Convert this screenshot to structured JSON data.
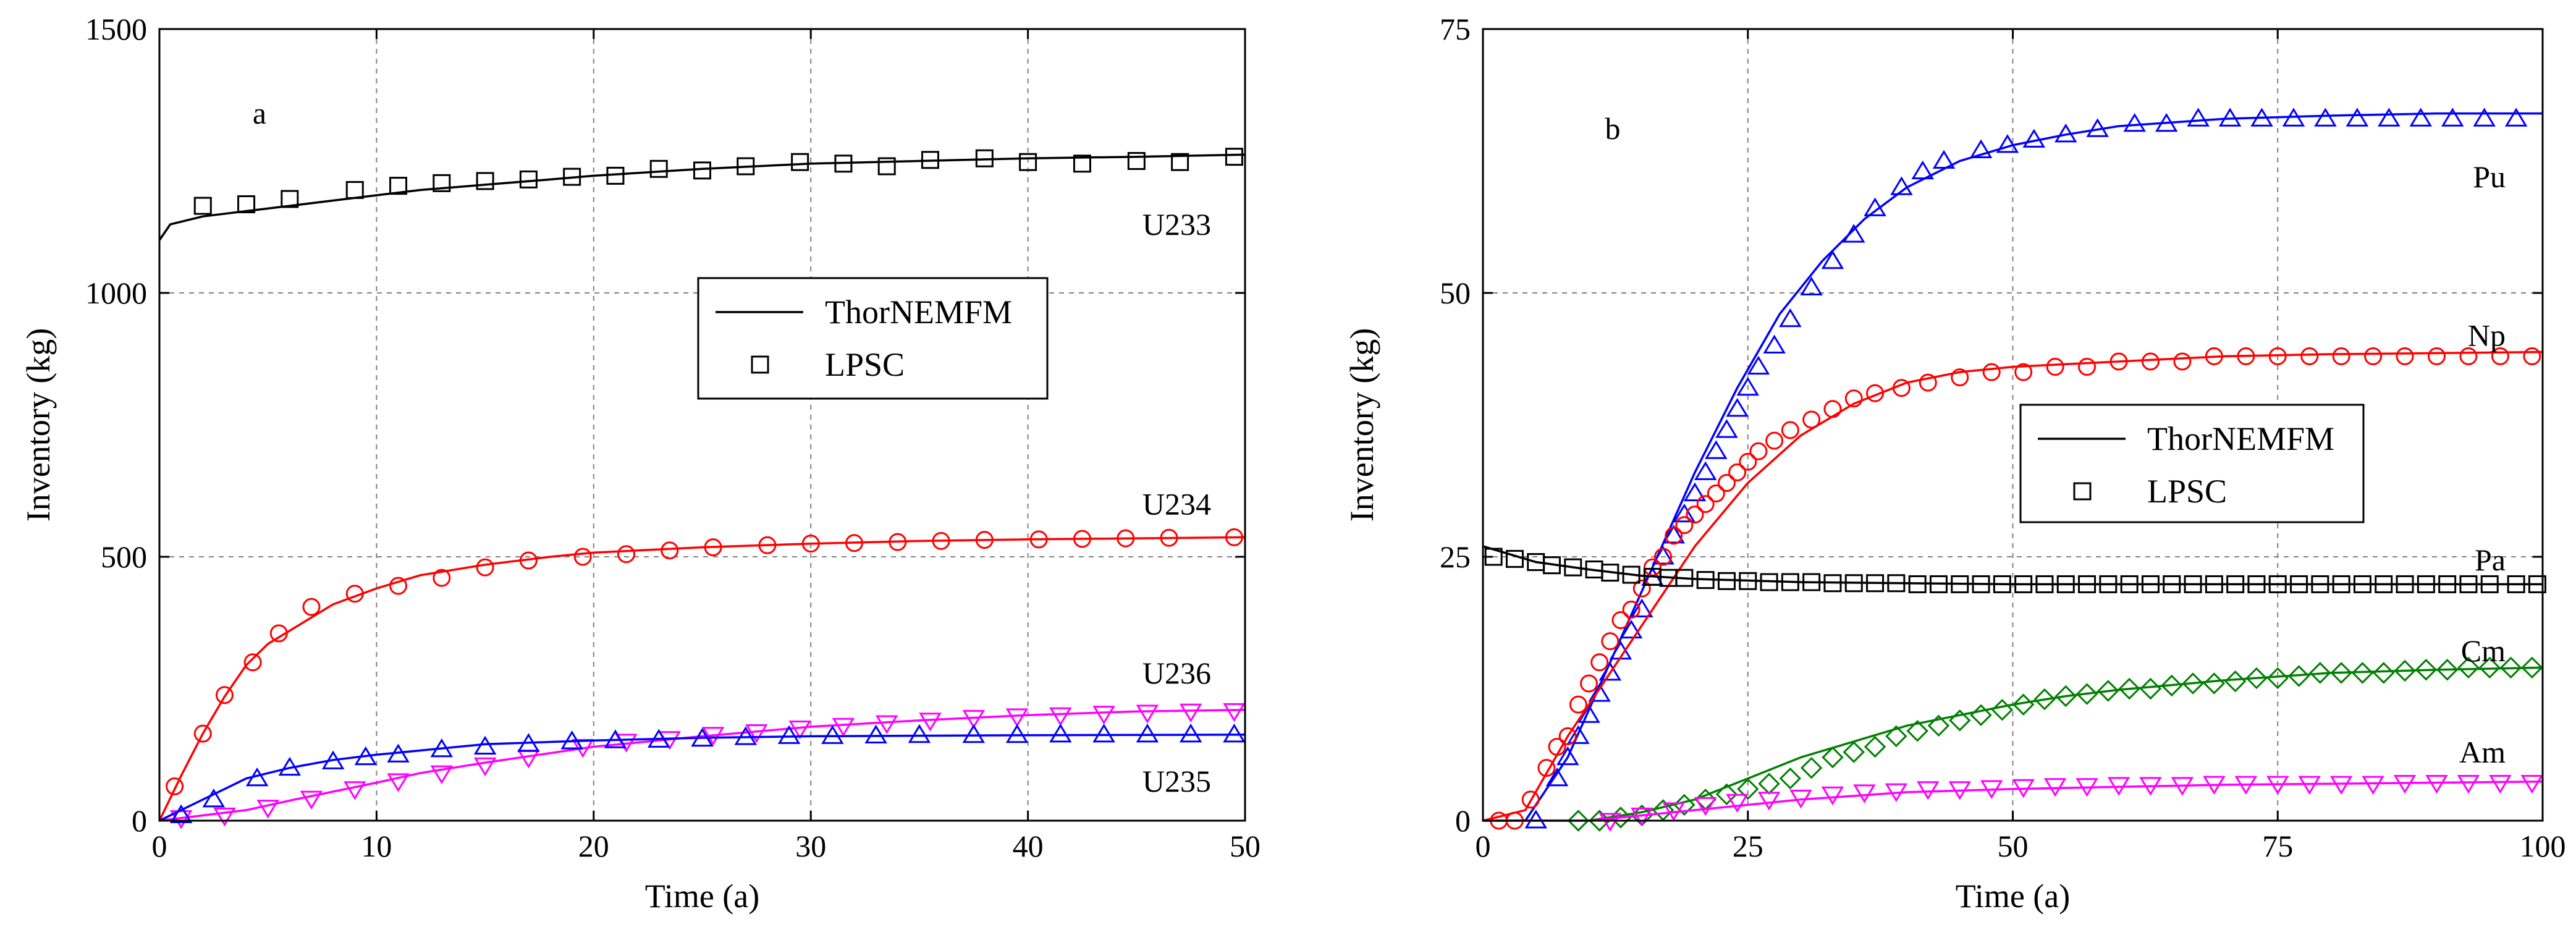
{
  "chart_data": [
    {
      "type": "line",
      "panel_label": "a",
      "xlabel": "Time (a)",
      "ylabel": "Inventory (kg)",
      "xlim": [
        0,
        50
      ],
      "ylim": [
        0,
        1500
      ],
      "xticks": [
        0,
        10,
        20,
        30,
        40,
        50
      ],
      "yticks": [
        0,
        500,
        1000,
        1500
      ],
      "grid": true,
      "legend": {
        "placement": "center-right",
        "entries": [
          {
            "label": "ThorNEMFM",
            "style": "line"
          },
          {
            "label": "LPSC",
            "style": "square-marker"
          }
        ]
      },
      "series": [
        {
          "name": "U233",
          "color": "#000000",
          "marker": "square",
          "x": [
            0,
            0.5,
            2,
            4,
            6,
            8,
            10,
            12,
            15,
            18,
            20,
            25,
            30,
            35,
            40,
            45,
            50
          ],
          "y": [
            1100,
            1130,
            1145,
            1155,
            1165,
            1175,
            1185,
            1195,
            1205,
            1215,
            1222,
            1235,
            1245,
            1250,
            1255,
            1258,
            1262
          ],
          "mx": [
            2,
            4,
            6,
            9,
            11,
            13,
            15,
            17,
            19,
            21,
            23,
            25,
            27,
            29.5,
            31.5,
            33.5,
            35.5,
            38,
            40,
            42.5,
            45,
            47,
            49.5
          ],
          "my": [
            1165,
            1168,
            1178,
            1195,
            1203,
            1208,
            1212,
            1215,
            1220,
            1222,
            1235,
            1232,
            1240,
            1248,
            1245,
            1240,
            1252,
            1255,
            1248,
            1245,
            1250,
            1248,
            1258
          ]
        },
        {
          "name": "U234",
          "color": "#ff0000",
          "marker": "circle",
          "x": [
            0,
            1,
            2,
            3,
            4,
            5,
            6,
            8,
            10,
            12,
            15,
            18,
            20,
            25,
            30,
            35,
            40,
            45,
            50
          ],
          "y": [
            0,
            85,
            165,
            235,
            295,
            335,
            360,
            410,
            440,
            465,
            485,
            500,
            508,
            518,
            525,
            530,
            533,
            535,
            537
          ],
          "mx": [
            0.7,
            2,
            3,
            4.3,
            5.5,
            7,
            9,
            11,
            13,
            15,
            17,
            19.5,
            21.5,
            23.5,
            25.5,
            28,
            30,
            32,
            34,
            36,
            38,
            40.5,
            42.5,
            44.5,
            46.5,
            49.5
          ],
          "my": [
            65,
            165,
            238,
            300,
            355,
            405,
            430,
            445,
            460,
            480,
            493,
            500,
            505,
            512,
            518,
            522,
            525,
            526,
            528,
            530,
            532,
            533,
            534,
            535,
            536,
            537
          ]
        },
        {
          "name": "U236",
          "color": "#ff00ff",
          "marker": "triangle-down",
          "x": [
            0,
            2,
            4,
            6,
            8,
            10,
            12,
            15,
            18,
            20,
            25,
            30,
            35,
            40,
            45,
            50
          ],
          "y": [
            0,
            10,
            20,
            38,
            55,
            72,
            90,
            110,
            128,
            140,
            160,
            178,
            190,
            200,
            207,
            210
          ],
          "mx": [
            1,
            3,
            5,
            7,
            9,
            11,
            13,
            15,
            17,
            19.5,
            21.5,
            23.5,
            25.5,
            27.5,
            29.5,
            31.5,
            33.5,
            35.5,
            37.5,
            39.5,
            41.5,
            43.5,
            45.5,
            47.5,
            49.5
          ],
          "my": [
            5,
            10,
            25,
            42,
            60,
            75,
            90,
            105,
            120,
            140,
            150,
            155,
            163,
            168,
            175,
            180,
            185,
            190,
            195,
            198,
            200,
            203,
            205,
            207,
            208
          ]
        },
        {
          "name": "U235",
          "color": "#0000ff",
          "marker": "triangle-up",
          "x": [
            0,
            1,
            2,
            3,
            4,
            6,
            8,
            10,
            15,
            20,
            25,
            30,
            40,
            50
          ],
          "y": [
            0,
            20,
            40,
            60,
            80,
            100,
            115,
            125,
            145,
            152,
            157,
            160,
            162,
            163
          ],
          "mx": [
            1,
            2.5,
            4.5,
            6,
            8,
            9.5,
            11,
            13,
            15,
            17,
            19,
            21,
            23,
            25,
            27,
            29,
            31,
            33,
            35,
            37.5,
            39.5,
            41.5,
            43.5,
            45.5,
            47.5,
            49.5
          ],
          "my": [
            10,
            40,
            80,
            100,
            112,
            120,
            125,
            135,
            140,
            145,
            150,
            152,
            153,
            155,
            158,
            160,
            160,
            161,
            162,
            162,
            162,
            163,
            163,
            163,
            163,
            163
          ]
        }
      ],
      "annotations": [
        {
          "text": "U233",
          "x": 44.3,
          "y": 1130
        },
        {
          "text": "U234",
          "x": 44.3,
          "y": 600
        },
        {
          "text": "U236",
          "x": 44.3,
          "y": 280
        },
        {
          "text": "U235",
          "x": 44.3,
          "y": 75
        }
      ]
    },
    {
      "type": "line",
      "panel_label": "b",
      "xlabel": "Time (a)",
      "ylabel": "Inventory (kg)",
      "xlim": [
        0,
        100
      ],
      "ylim": [
        0,
        75
      ],
      "xticks": [
        0,
        25,
        50,
        75,
        100
      ],
      "yticks": [
        0,
        25,
        50,
        75
      ],
      "grid": true,
      "legend": {
        "placement": "center",
        "entries": [
          {
            "label": "ThorNEMFM",
            "style": "line"
          },
          {
            "label": "LPSC",
            "style": "square-marker"
          }
        ]
      },
      "series": [
        {
          "name": "Pu",
          "color": "#0000ff",
          "marker": "triangle-up",
          "x": [
            0,
            4,
            8,
            12,
            16,
            20,
            24,
            28,
            32,
            36,
            40,
            45,
            50,
            55,
            60,
            70,
            80,
            90,
            100
          ],
          "y": [
            0,
            0,
            6,
            15,
            24,
            33,
            41,
            48,
            53,
            57,
            60,
            62.5,
            64,
            65,
            65.8,
            66.5,
            66.8,
            67,
            67
          ],
          "mx": [
            5,
            7,
            8,
            9,
            10,
            11,
            12,
            13,
            14,
            15,
            16,
            17,
            18,
            19,
            20,
            21,
            22,
            23,
            24,
            25,
            26,
            27.5,
            29,
            31,
            33,
            35,
            37,
            39.5,
            41.5,
            43.5,
            47,
            49.5,
            52,
            55,
            58,
            61.5,
            64.5,
            67.5,
            70.5,
            73.5,
            76.5,
            79.5,
            82.5,
            85.5,
            88.5,
            91.5,
            94.5,
            97.5
          ],
          "my": [
            0,
            4,
            6,
            8,
            10,
            12,
            14,
            16,
            18,
            20,
            23,
            25,
            27,
            29,
            31,
            33,
            35,
            37,
            39,
            41,
            43,
            45,
            47.5,
            50.5,
            53,
            55.5,
            58,
            60,
            61.5,
            62.5,
            63.5,
            64,
            64.5,
            65,
            65.5,
            66,
            66,
            66.5,
            66.5,
            66.5,
            66.5,
            66.5,
            66.5,
            66.5,
            66.5,
            66.5,
            66.5,
            66.5
          ]
        },
        {
          "name": "Np",
          "color": "#ff0000",
          "marker": "circle",
          "x": [
            0,
            4,
            8,
            12,
            16,
            20,
            25,
            30,
            35,
            40,
            45,
            50,
            60,
            70,
            80,
            90,
            100
          ],
          "y": [
            0,
            1,
            8,
            14,
            20,
            26,
            32,
            36.5,
            39.5,
            41.5,
            42.5,
            43,
            43.5,
            44,
            44.2,
            44.3,
            44.4
          ],
          "mx": [
            1.5,
            3,
            4.5,
            6,
            7,
            8,
            9,
            10,
            11,
            12,
            13,
            14,
            15,
            16,
            17,
            18,
            19,
            20,
            21,
            22,
            23,
            24,
            25,
            26,
            27.5,
            29,
            31,
            33,
            35,
            37,
            39.5,
            42,
            45,
            48,
            51,
            54,
            57,
            60,
            63,
            66,
            69,
            72,
            75,
            78,
            81,
            84,
            87,
            90,
            93,
            96,
            99
          ],
          "my": [
            0,
            0,
            2,
            5,
            7,
            8,
            11,
            13,
            15,
            17,
            19,
            20,
            22,
            24,
            25,
            27,
            28,
            29,
            30,
            31,
            32,
            33,
            34,
            35,
            36,
            37,
            38,
            39,
            40,
            40.5,
            41,
            41.5,
            42,
            42.5,
            42.5,
            43,
            43,
            43.5,
            43.5,
            43.5,
            44,
            44,
            44,
            44,
            44,
            44,
            44,
            44,
            44,
            44,
            44
          ]
        },
        {
          "name": "Pa",
          "color": "#000000",
          "marker": "square",
          "x": [
            0,
            5,
            10,
            15,
            20,
            30,
            40,
            50,
            60,
            70,
            80,
            90,
            100
          ],
          "y": [
            26,
            24.5,
            23.8,
            23.2,
            22.9,
            22.6,
            22.5,
            22.4,
            22.4,
            22.4,
            22.4,
            22.4,
            22.4
          ],
          "mx": [
            1,
            3,
            5,
            6.5,
            8.5,
            10.5,
            12,
            14,
            16,
            17.5,
            19,
            21,
            23,
            25,
            27,
            29,
            31,
            33,
            35,
            37,
            39,
            41,
            43,
            45,
            47,
            49,
            51,
            53,
            55,
            57,
            59,
            61,
            63,
            65,
            67,
            69,
            71,
            73,
            75,
            77,
            79,
            81,
            83,
            85,
            87,
            89,
            91,
            93,
            95,
            97.5,
            99.5
          ],
          "my": [
            25,
            24.8,
            24.5,
            24.2,
            24,
            23.8,
            23.5,
            23.3,
            23.1,
            23,
            23,
            22.8,
            22.7,
            22.7,
            22.6,
            22.6,
            22.6,
            22.5,
            22.5,
            22.5,
            22.5,
            22.4,
            22.4,
            22.4,
            22.4,
            22.4,
            22.4,
            22.4,
            22.4,
            22.4,
            22.4,
            22.4,
            22.4,
            22.4,
            22.4,
            22.4,
            22.4,
            22.4,
            22.4,
            22.4,
            22.4,
            22.4,
            22.4,
            22.4,
            22.4,
            22.4,
            22.4,
            22.4,
            22.4,
            22.4,
            22.4
          ]
        },
        {
          "name": "Cm",
          "color": "#008000",
          "marker": "diamond",
          "x": [
            0,
            10,
            15,
            20,
            25,
            30,
            35,
            40,
            45,
            50,
            55,
            60,
            70,
            80,
            90,
            100
          ],
          "y": [
            0,
            0,
            0.8,
            2,
            4,
            6,
            7.5,
            9,
            10,
            11,
            11.8,
            12.4,
            13.3,
            14,
            14.3,
            14.5
          ],
          "mx": [
            9,
            11,
            13,
            15,
            17,
            19,
            21,
            23,
            25,
            27,
            29,
            31,
            33,
            35,
            37,
            39,
            41,
            43,
            45,
            47,
            49,
            51,
            53,
            55,
            57,
            59,
            61,
            63,
            65,
            67,
            69,
            71,
            73,
            75,
            77,
            79,
            81,
            83,
            85,
            87,
            89,
            91,
            93,
            95,
            97,
            99
          ],
          "my": [
            0,
            0,
            0.3,
            0.5,
            1,
            1.5,
            2,
            2.5,
            3,
            3.5,
            4,
            5,
            6,
            6.5,
            7,
            8,
            8.5,
            9,
            9.5,
            10,
            10.5,
            11,
            11.5,
            11.8,
            12,
            12.3,
            12.5,
            12.5,
            12.8,
            13,
            13,
            13.2,
            13.5,
            13.5,
            13.7,
            14,
            14,
            14,
            14,
            14.2,
            14.3,
            14.3,
            14.5,
            14.5,
            14.5,
            14.5
          ]
        },
        {
          "name": "Am",
          "color": "#ff00ff",
          "marker": "triangle-down",
          "x": [
            0,
            10,
            15,
            20,
            25,
            30,
            40,
            50,
            60,
            70,
            80,
            90,
            100
          ],
          "y": [
            0,
            0,
            0.5,
            1,
            1.5,
            2,
            2.7,
            3,
            3.2,
            3.4,
            3.5,
            3.6,
            3.7
          ],
          "mx": [
            12,
            15,
            18,
            21,
            24,
            27,
            30,
            33,
            36,
            39,
            42,
            45,
            48,
            51,
            54,
            57,
            60,
            63,
            66,
            69,
            72,
            75,
            78,
            81,
            84,
            87,
            90,
            93,
            96,
            99
          ],
          "my": [
            0,
            0.5,
            1,
            1.5,
            1.8,
            2,
            2.2,
            2.5,
            2.7,
            2.8,
            3,
            3,
            3.1,
            3.2,
            3.3,
            3.3,
            3.4,
            3.4,
            3.4,
            3.5,
            3.5,
            3.5,
            3.5,
            3.5,
            3.5,
            3.6,
            3.6,
            3.6,
            3.6,
            3.6
          ]
        }
      ],
      "annotations": [
        {
          "text": "Pu",
          "x": 90.4,
          "y": 61
        },
        {
          "text": "Np",
          "x": 90.4,
          "y": 46
        },
        {
          "text": "Pa",
          "x": 90.4,
          "y": 24.7
        },
        {
          "text": "Cm",
          "x": 90.4,
          "y": 16.1
        },
        {
          "text": "Am",
          "x": 90.4,
          "y": 6.5
        }
      ]
    }
  ]
}
